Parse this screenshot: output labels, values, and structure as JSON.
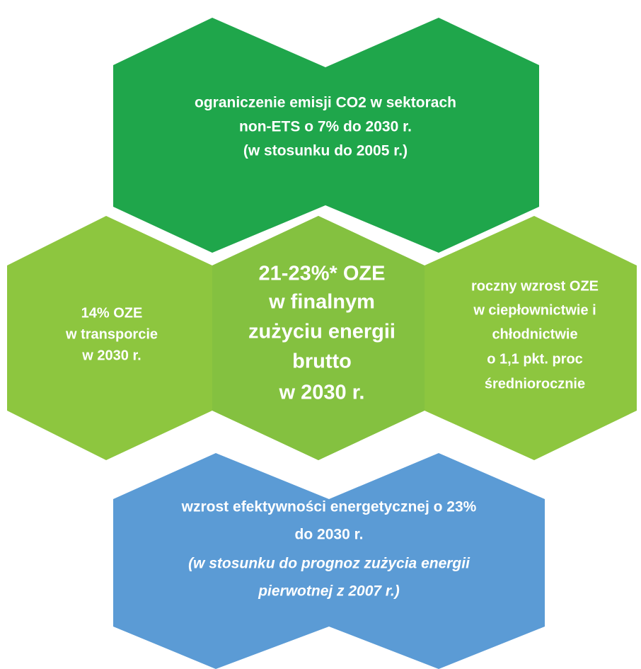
{
  "top": {
    "lines": [
      "ograniczenie emisji CO2 w sektorach",
      "non-ETS  o 7%  do 2030 r.",
      "(w stosunku do 2005 r.)"
    ]
  },
  "left": {
    "lines": [
      "14% OZE",
      "w transporcie",
      "w 2030 r."
    ]
  },
  "center": {
    "lines": [
      "21-23%* OZE",
      "w finalnym",
      "zużyciu energii",
      "brutto",
      "w 2030 r."
    ]
  },
  "right": {
    "lines": [
      "roczny wzrost OZE",
      "w ciepłownictwie i",
      "chłodnictwie",
      "o 1,1 pkt. proc",
      "średniorocznie"
    ]
  },
  "bottom": {
    "lines": [
      "wzrost efektywności energetycznej o 23%",
      "do 2030 r.",
      "(w stosunku do prognoz zużycia energii",
      "pierwotnej z 2007 r.)"
    ]
  }
}
